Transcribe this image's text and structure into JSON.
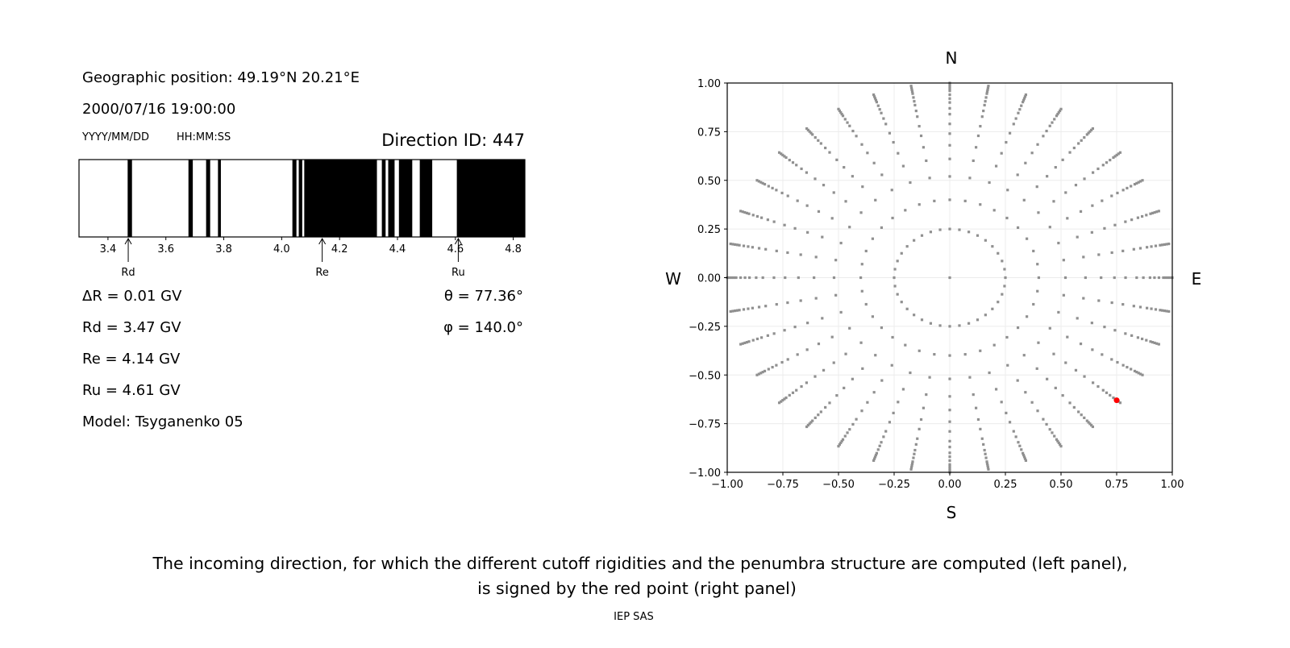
{
  "info": {
    "position": "Geographic position: 49.19°N 20.21°E",
    "datetime": "2000/07/16 19:00:00",
    "date_format": "YYYY/MM/DD",
    "time_format": "HH:MM:SS",
    "direction_id": "Direction ID: 447",
    "delta_r": "ΔR = 0.01 GV",
    "rd": "Rd = 3.47 GV",
    "re": "Re = 4.14 GV",
    "ru": "Ru = 4.61 GV",
    "model": "Model: Tsyganenko 05",
    "theta": "θ = 77.36°",
    "phi": "φ = 140.0°"
  },
  "caption": {
    "line1": "The incoming direction, for which the different cutoff rigidities and the penumbra structure are computed (left panel),",
    "line2": "is signed by the red point (right panel)",
    "credit": "IEP SAS"
  },
  "chart_data": [
    {
      "type": "bar",
      "subtype": "penumbra-strip",
      "xlim": [
        3.3,
        4.84
      ],
      "xticks": [
        3.4,
        3.6,
        3.8,
        4.0,
        4.2,
        4.4,
        4.6,
        4.8
      ],
      "xtick_labels": [
        "3.4",
        "3.6",
        "3.8",
        "4.0",
        "4.2",
        "4.4",
        "4.6",
        "4.8"
      ],
      "forbidden_bands": [
        [
          3.468,
          3.483
        ],
        [
          3.678,
          3.693
        ],
        [
          3.739,
          3.753
        ],
        [
          3.78,
          3.79
        ],
        [
          4.037,
          4.051
        ],
        [
          4.059,
          4.071
        ],
        [
          4.078,
          4.329
        ],
        [
          4.346,
          4.359
        ],
        [
          4.368,
          4.39
        ],
        [
          4.405,
          4.451
        ],
        [
          4.477,
          4.52
        ],
        [
          4.605,
          4.84
        ]
      ],
      "band_color": "#000000",
      "annotations": [
        {
          "label": "Rd",
          "x": 3.47
        },
        {
          "label": "Re",
          "x": 4.14
        },
        {
          "label": "Ru",
          "x": 4.61
        }
      ]
    },
    {
      "type": "scatter",
      "xlim": [
        -1,
        1
      ],
      "ylim": [
        -1,
        1
      ],
      "xticks": [
        -1,
        -0.75,
        -0.5,
        -0.25,
        0,
        0.25,
        0.5,
        0.75,
        1
      ],
      "yticks": [
        -1,
        -0.75,
        -0.5,
        -0.25,
        0,
        0.25,
        0.5,
        0.75,
        1
      ],
      "xtick_labels": [
        "−1.00",
        "−0.75",
        "−0.50",
        "−0.25",
        "0.00",
        "0.25",
        "0.50",
        "0.75",
        "1.00"
      ],
      "ytick_labels": [
        "−1.00",
        "−0.75",
        "−0.50",
        "−0.25",
        "0.00",
        "0.25",
        "0.50",
        "0.75",
        "1.00"
      ],
      "grid": true,
      "compass": {
        "north": "N",
        "south": "S",
        "west": "W",
        "east": "E"
      },
      "direction_grid": {
        "azimuth_step_deg": 10,
        "radii": [
          0.25,
          0.4,
          0.52,
          0.61,
          0.68,
          0.74,
          0.79,
          0.84,
          0.87,
          0.9,
          0.92,
          0.94,
          0.96,
          0.97,
          0.98,
          0.99,
          1.0
        ],
        "center_point": [
          0,
          0
        ],
        "color": "#909090"
      },
      "highlight_point": {
        "x": 0.75,
        "y": -0.63,
        "color": "#ff0000"
      }
    }
  ]
}
